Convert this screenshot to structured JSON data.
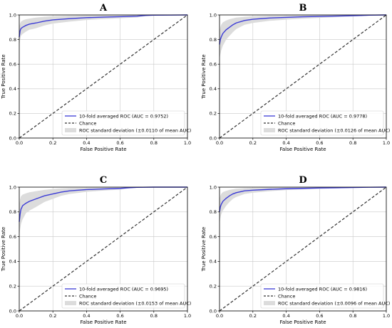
{
  "chart_data": [
    {
      "type": "line",
      "title": "A",
      "xlabel": "False Positive Rate",
      "ylabel": "True Positive Rate",
      "xlim": [
        0.0,
        1.0
      ],
      "ylim": [
        0.0,
        1.0
      ],
      "xticks": [
        "0.0",
        "0.2",
        "0.4",
        "0.6",
        "0.8",
        "1.0"
      ],
      "yticks": [
        "0.0",
        "0.2",
        "0.4",
        "0.6",
        "0.8",
        "1.0"
      ],
      "grid": true,
      "legend_position": "lower-right",
      "colors": {
        "roc": "#3b3bd6",
        "chance": "#333333",
        "band": "#dcdcdc"
      },
      "series": [
        {
          "name": "10-fold averaged ROC (AUC = 0.9752)",
          "style": "solid",
          "x": [
            0.0,
            0.005,
            0.01,
            0.02,
            0.04,
            0.06,
            0.08,
            0.1,
            0.15,
            0.2,
            0.25,
            0.3,
            0.4,
            0.5,
            0.6,
            0.7,
            0.75,
            0.8,
            0.9,
            1.0
          ],
          "y": [
            0.82,
            0.87,
            0.89,
            0.9,
            0.915,
            0.925,
            0.93,
            0.935,
            0.95,
            0.96,
            0.965,
            0.97,
            0.978,
            0.982,
            0.986,
            0.99,
            0.996,
            0.998,
            0.999,
            1.0
          ]
        },
        {
          "name": "Chance",
          "style": "dashed",
          "x": [
            0.0,
            1.0
          ],
          "y": [
            0.0,
            1.0
          ]
        }
      ],
      "band": {
        "name": "ROC standard deviation (±0.0110 of mean AUC)",
        "x": [
          0.0,
          0.005,
          0.01,
          0.02,
          0.04,
          0.06,
          0.08,
          0.1,
          0.15,
          0.2,
          0.25,
          0.3,
          0.4,
          0.5,
          0.6,
          0.7,
          0.75,
          0.8,
          0.9,
          1.0
        ],
        "upper": [
          0.9,
          0.93,
          0.945,
          0.955,
          0.965,
          0.97,
          0.975,
          0.978,
          0.985,
          0.99,
          0.992,
          0.994,
          0.997,
          0.998,
          0.999,
          1.0,
          1.0,
          1.0,
          1.0,
          1.0
        ],
        "lower": [
          0.74,
          0.8,
          0.83,
          0.845,
          0.865,
          0.88,
          0.885,
          0.892,
          0.915,
          0.93,
          0.938,
          0.946,
          0.959,
          0.966,
          0.973,
          0.98,
          0.99,
          0.996,
          0.998,
          1.0
        ]
      }
    },
    {
      "type": "line",
      "title": "B",
      "xlabel": "False Positive Rate",
      "ylabel": "True Positive Rate",
      "xlim": [
        0.0,
        1.0
      ],
      "ylim": [
        0.0,
        1.0
      ],
      "xticks": [
        "0.0",
        "0.2",
        "0.4",
        "0.6",
        "0.8",
        "1.0"
      ],
      "yticks": [
        "0.0",
        "0.2",
        "0.4",
        "0.6",
        "0.8",
        "1.0"
      ],
      "grid": true,
      "legend_position": "lower-right",
      "colors": {
        "roc": "#3b3bd6",
        "chance": "#333333",
        "band": "#dcdcdc"
      },
      "series": [
        {
          "name": "10-fold averaged ROC (AUC = 0.9778)",
          "style": "solid",
          "x": [
            0.0,
            0.005,
            0.01,
            0.02,
            0.04,
            0.06,
            0.08,
            0.1,
            0.15,
            0.2,
            0.3,
            0.4,
            0.5,
            0.6,
            0.7,
            0.8,
            0.9,
            1.0
          ],
          "y": [
            0.76,
            0.8,
            0.82,
            0.85,
            0.88,
            0.9,
            0.92,
            0.935,
            0.955,
            0.965,
            0.975,
            0.98,
            0.985,
            0.988,
            0.991,
            0.994,
            0.998,
            1.0
          ]
        },
        {
          "name": "Chance",
          "style": "dashed",
          "x": [
            0.0,
            1.0
          ],
          "y": [
            0.0,
            1.0
          ]
        }
      ],
      "band": {
        "name": "ROC standard deviation (±0.0126 of mean AUC)",
        "x": [
          0.0,
          0.005,
          0.01,
          0.02,
          0.04,
          0.06,
          0.08,
          0.1,
          0.15,
          0.2,
          0.3,
          0.4,
          0.5,
          0.6,
          0.7,
          0.8,
          0.9,
          1.0
        ],
        "upper": [
          0.86,
          0.9,
          0.92,
          0.94,
          0.955,
          0.965,
          0.972,
          0.978,
          0.985,
          0.99,
          0.994,
          0.996,
          0.998,
          0.999,
          1.0,
          1.0,
          1.0,
          1.0
        ],
        "lower": [
          0.64,
          0.68,
          0.71,
          0.75,
          0.8,
          0.83,
          0.86,
          0.885,
          0.92,
          0.935,
          0.952,
          0.962,
          0.97,
          0.976,
          0.982,
          0.988,
          0.995,
          1.0
        ]
      }
    },
    {
      "type": "line",
      "title": "C",
      "xlabel": "False Positive Rate",
      "ylabel": "True Positive Rate",
      "xlim": [
        0.0,
        1.0
      ],
      "ylim": [
        0.0,
        1.0
      ],
      "xticks": [
        "0.0",
        "0.2",
        "0.4",
        "0.6",
        "0.8",
        "1.0"
      ],
      "yticks": [
        "0.0",
        "0.2",
        "0.4",
        "0.6",
        "0.8",
        "1.0"
      ],
      "grid": true,
      "legend_position": "lower-right",
      "colors": {
        "roc": "#3b3bd6",
        "chance": "#333333",
        "band": "#dcdcdc"
      },
      "series": [
        {
          "name": "10-fold averaged ROC (AUC = 0.9695)",
          "style": "solid",
          "x": [
            0.0,
            0.005,
            0.01,
            0.02,
            0.04,
            0.06,
            0.08,
            0.1,
            0.15,
            0.2,
            0.25,
            0.3,
            0.4,
            0.5,
            0.6,
            0.65,
            0.7,
            0.8,
            0.9,
            1.0
          ],
          "y": [
            0.72,
            0.78,
            0.82,
            0.85,
            0.87,
            0.885,
            0.895,
            0.905,
            0.93,
            0.945,
            0.96,
            0.97,
            0.98,
            0.985,
            0.99,
            0.995,
            0.998,
            1.0,
            1.0,
            1.0
          ]
        },
        {
          "name": "Chance",
          "style": "dashed",
          "x": [
            0.0,
            1.0
          ],
          "y": [
            0.0,
            1.0
          ]
        }
      ],
      "band": {
        "name": "ROC standard deviation (±0.0153 of mean AUC)",
        "x": [
          0.0,
          0.005,
          0.01,
          0.02,
          0.04,
          0.06,
          0.08,
          0.1,
          0.15,
          0.2,
          0.25,
          0.3,
          0.4,
          0.5,
          0.6,
          0.65,
          0.7,
          0.8,
          0.9,
          1.0
        ],
        "upper": [
          0.85,
          0.9,
          0.925,
          0.94,
          0.95,
          0.958,
          0.963,
          0.968,
          0.978,
          0.985,
          0.99,
          0.993,
          0.996,
          0.998,
          1.0,
          1.0,
          1.0,
          1.0,
          1.0,
          1.0
        ],
        "lower": [
          0.6,
          0.66,
          0.7,
          0.74,
          0.79,
          0.81,
          0.825,
          0.84,
          0.88,
          0.905,
          0.93,
          0.945,
          0.962,
          0.972,
          0.98,
          0.99,
          0.996,
          1.0,
          1.0,
          1.0
        ]
      }
    },
    {
      "type": "line",
      "title": "D",
      "xlabel": "False Positive Rate",
      "ylabel": "True Positive Rate",
      "xlim": [
        0.0,
        1.0
      ],
      "ylim": [
        0.0,
        1.0
      ],
      "xticks": [
        "0.0",
        "0.2",
        "0.4",
        "0.6",
        "0.8",
        "1.0"
      ],
      "yticks": [
        "0.0",
        "0.2",
        "0.4",
        "0.6",
        "0.8",
        "1.0"
      ],
      "grid": true,
      "legend_position": "lower-right",
      "colors": {
        "roc": "#3b3bd6",
        "chance": "#333333",
        "band": "#dcdcdc"
      },
      "series": [
        {
          "name": "10-fold averaged ROC (AUC = 0.9816)",
          "style": "solid",
          "x": [
            0.0,
            0.005,
            0.01,
            0.02,
            0.04,
            0.06,
            0.08,
            0.1,
            0.15,
            0.2,
            0.3,
            0.4,
            0.5,
            0.6,
            0.7,
            0.8,
            0.9,
            1.0
          ],
          "y": [
            0.8,
            0.84,
            0.86,
            0.885,
            0.91,
            0.93,
            0.945,
            0.955,
            0.97,
            0.975,
            0.982,
            0.987,
            0.99,
            0.993,
            0.995,
            0.997,
            0.999,
            1.0
          ]
        },
        {
          "name": "Chance",
          "style": "dashed",
          "x": [
            0.0,
            1.0
          ],
          "y": [
            0.0,
            1.0
          ]
        }
      ],
      "band": {
        "name": "ROC standard deviation (±0.0096 of mean AUC)",
        "x": [
          0.0,
          0.005,
          0.01,
          0.02,
          0.04,
          0.06,
          0.08,
          0.1,
          0.15,
          0.2,
          0.3,
          0.4,
          0.5,
          0.6,
          0.7,
          0.8,
          0.9,
          1.0
        ],
        "upper": [
          0.9,
          0.93,
          0.945,
          0.96,
          0.97,
          0.978,
          0.983,
          0.987,
          0.992,
          0.995,
          0.997,
          0.998,
          0.999,
          1.0,
          1.0,
          1.0,
          1.0,
          1.0
        ],
        "lower": [
          0.7,
          0.75,
          0.78,
          0.81,
          0.85,
          0.88,
          0.905,
          0.92,
          0.945,
          0.955,
          0.967,
          0.976,
          0.981,
          0.986,
          0.99,
          0.994,
          0.998,
          1.0
        ]
      }
    }
  ]
}
